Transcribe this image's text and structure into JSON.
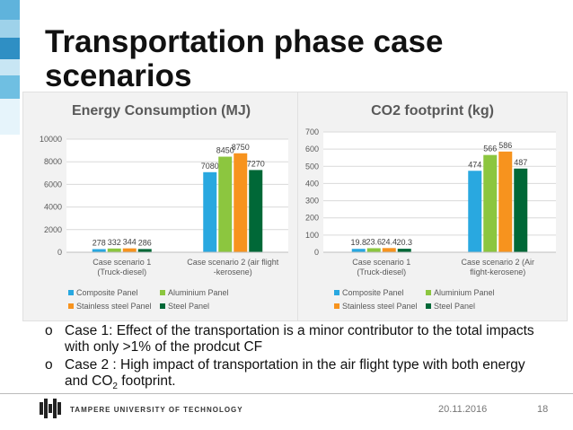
{
  "slide": {
    "title": "Transportation phase case scenarios",
    "bullet_marker": "o",
    "bullets": [
      {
        "text": "Case 1: Effect of the transportation is a minor contributor to the total impacts with only >1% of the prodcut CF"
      },
      {
        "text_before": "Case 2 : High impact of transportation in the air flight type with both energy and CO",
        "subscript": "2",
        "text_after": " footprint."
      }
    ],
    "footer": {
      "university": "TAMPERE UNIVERSITY OF TECHNOLOGY",
      "date": "20.11.2016",
      "page": "18"
    }
  },
  "chart_data": [
    {
      "type": "bar",
      "title": "Energy Consumption (MJ)",
      "categories": [
        "Case scenario 1 (Truck-diesel)",
        "Case scenario 2 (air flight -kerosene)"
      ],
      "series": [
        {
          "name": "Composite Panel",
          "color": "#29a8e0",
          "values": [
            278,
            7080
          ]
        },
        {
          "name": "Aluminium Panel",
          "color": "#8cc63f",
          "values": [
            332,
            8450
          ]
        },
        {
          "name": "Stainless steel Panel",
          "color": "#f7931e",
          "values": [
            344,
            8750
          ]
        },
        {
          "name": "Steel Panel",
          "color": "#006837",
          "values": [
            286,
            7270
          ]
        }
      ],
      "ylim": [
        0,
        10000
      ],
      "yticks": [
        "0",
        "2000",
        "4000",
        "6000",
        "8000",
        "10000"
      ],
      "grid": true,
      "legend": "bottom"
    },
    {
      "type": "bar",
      "title": "CO2 footprint (kg)",
      "categories": [
        "Case scenario 1 (Truck-diesel)",
        "Case scenario 2 (Air flight-kerosene)"
      ],
      "series": [
        {
          "name": "Composite Panel",
          "color": "#29a8e0",
          "values": [
            19.8,
            474
          ]
        },
        {
          "name": "Aluminium Panel",
          "color": "#8cc63f",
          "values": [
            23.6,
            566
          ]
        },
        {
          "name": "Stainless steel Panel",
          "color": "#f7931e",
          "values": [
            24.4,
            586
          ]
        },
        {
          "name": "Steel Panel",
          "color": "#006837",
          "values": [
            20.3,
            487
          ]
        }
      ],
      "ylim": [
        0,
        700
      ],
      "yticks": [
        "0",
        "100",
        "200",
        "300",
        "400",
        "500",
        "600",
        "700"
      ],
      "grid": true,
      "legend": "bottom"
    }
  ]
}
